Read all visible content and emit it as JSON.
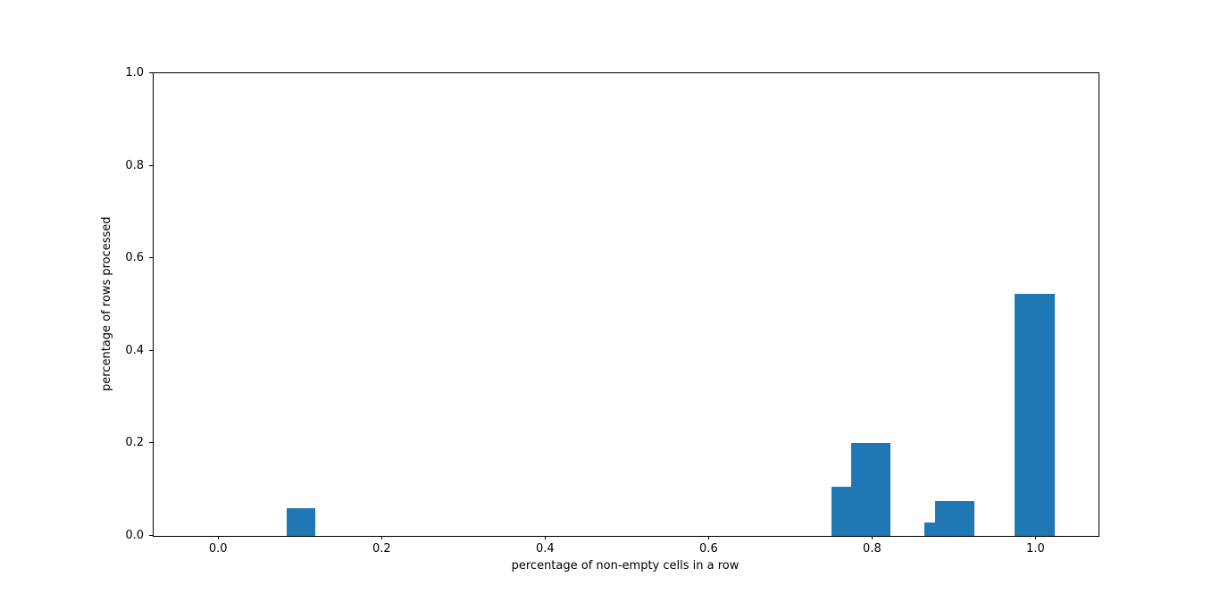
{
  "chart_data": {
    "type": "bar",
    "title": "",
    "xlabel": "percentage of non-empty cells in a row",
    "ylabel": "percentage of rows processed",
    "xlim": [
      -0.08,
      1.076
    ],
    "ylim": [
      0.0,
      1.0
    ],
    "xticks": [
      0.0,
      0.2,
      0.4,
      0.6,
      0.8,
      1.0
    ],
    "xtick_labels": [
      "0.0",
      "0.2",
      "0.4",
      "0.6",
      "0.8",
      "1.0"
    ],
    "yticks": [
      0.0,
      0.2,
      0.4,
      0.6,
      0.8,
      1.0
    ],
    "ytick_labels": [
      "0.0",
      "0.2",
      "0.4",
      "0.6",
      "0.8",
      "1.0"
    ],
    "grid": false,
    "legend": null,
    "bar_color": "#1f77b4",
    "bars": [
      {
        "x0": 0.083,
        "x1": 0.118,
        "height": 0.06
      },
      {
        "x0": 0.749,
        "x1": 0.773,
        "height": 0.107
      },
      {
        "x0": 0.773,
        "x1": 0.822,
        "height": 0.2
      },
      {
        "x0": 0.863,
        "x1": 0.876,
        "height": 0.03
      },
      {
        "x0": 0.876,
        "x1": 0.924,
        "height": 0.075
      },
      {
        "x0": 0.973,
        "x1": 1.023,
        "height": 0.523
      }
    ]
  }
}
